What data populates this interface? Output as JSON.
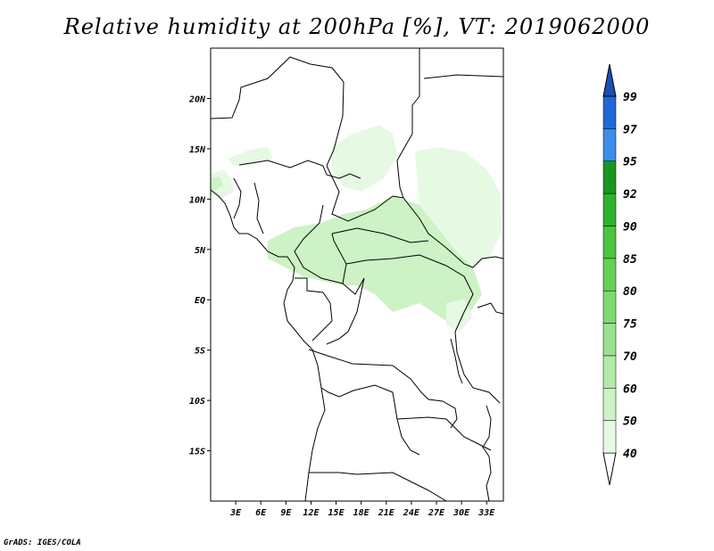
{
  "title": "Relative humidity at 200hPa [%], VT: 2019062000",
  "credit": "GrADS: IGES/COLA",
  "map": {
    "lon_range": [
      0,
      35
    ],
    "lat_range": [
      -20,
      25
    ],
    "lat_ticks": [
      "20N",
      "15N",
      "10N",
      "5N",
      "EQ",
      "5S",
      "10S",
      "15S"
    ],
    "lon_ticks": [
      "3E",
      "6E",
      "9E",
      "12E",
      "15E",
      "18E",
      "21E",
      "24E",
      "27E",
      "30E",
      "33E"
    ]
  },
  "colorbar": {
    "levels": [
      "40",
      "50",
      "60",
      "70",
      "75",
      "80",
      "85",
      "90",
      "92",
      "95",
      "97",
      "99"
    ],
    "colors": [
      "#ffffff",
      "#e6f9e3",
      "#ccf2c6",
      "#b3eaa9",
      "#99e18c",
      "#80d870",
      "#66d055",
      "#4cc43f",
      "#2eb22e",
      "#1a961f",
      "#3d8ce8",
      "#2068d6",
      "#1a4fb4"
    ]
  }
}
